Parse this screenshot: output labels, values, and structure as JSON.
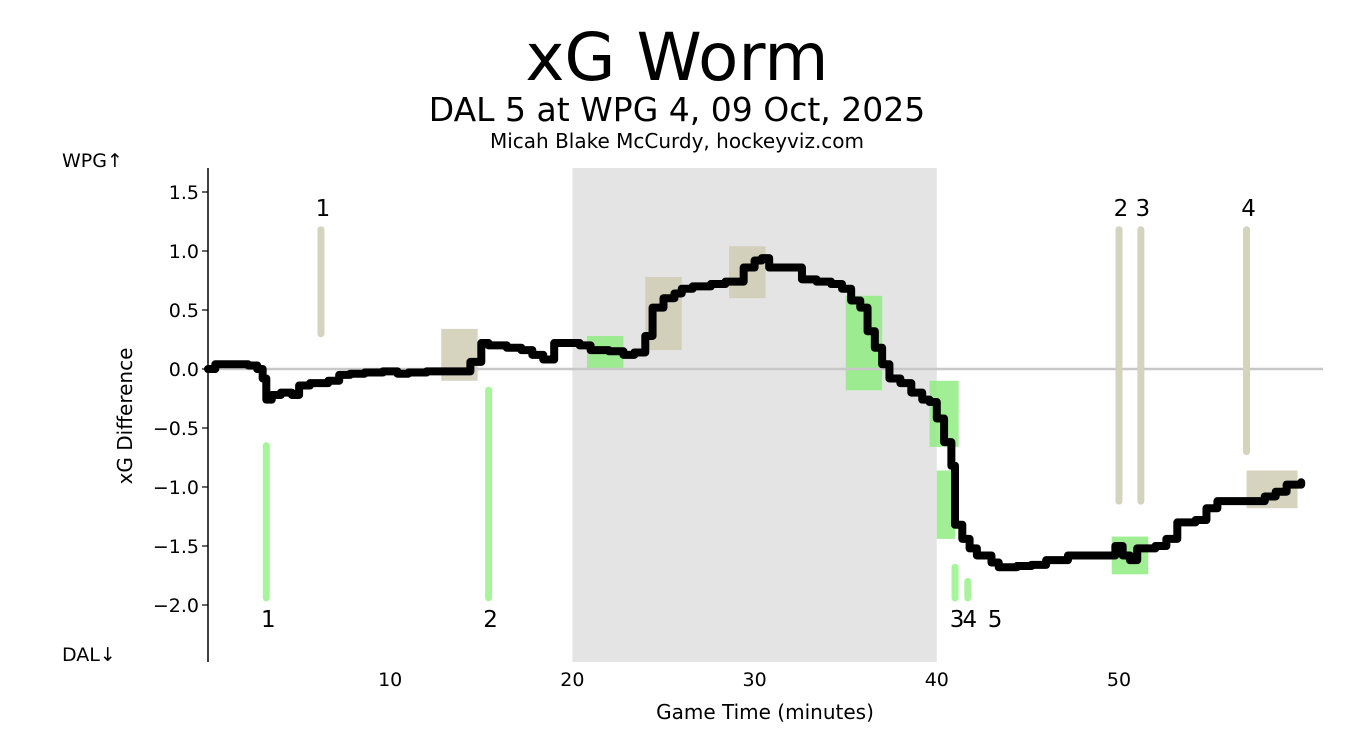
{
  "chart_data": {
    "type": "line",
    "title": "xG Worm",
    "subtitle": "DAL 5 at WPG 4, 09 Oct, 2025",
    "byline": "Micah Blake McCurdy, hockeyviz.com",
    "xlabel": "Game Time (minutes)",
    "ylabel": "xG Difference",
    "xlim": [
      0,
      61
    ],
    "ylim": [
      -2.5,
      1.7
    ],
    "x_ticks": [
      10,
      20,
      30,
      40,
      50
    ],
    "y_ticks": [
      1.5,
      1.0,
      0.5,
      0.0,
      -0.5,
      -1.0,
      -1.5,
      -2.0
    ],
    "y_tick_labels": [
      "1.5",
      "1.0",
      "0.5",
      "0.0",
      "−0.5",
      "−1.0",
      "−1.5",
      "−2.0"
    ],
    "team_top_label": "WPG↑",
    "team_bottom_label": "DAL↓",
    "grid": false,
    "shaded_period": [
      20,
      40
    ],
    "colors": {
      "worm": "#000000",
      "period_shade": "#e4e4e4",
      "zero_line": "#c8c8c8",
      "home": "#d4d3bd",
      "away": "#a6f59b",
      "away_box": "#90ec83",
      "home_box": "#cfcdb4"
    },
    "series": [
      {
        "points": [
          [
            0,
            0.0
          ],
          [
            0.4,
            0.04
          ],
          [
            2.2,
            0.03
          ],
          [
            2.7,
            0.0
          ],
          [
            3.0,
            -0.08
          ],
          [
            3.2,
            -0.26
          ],
          [
            3.5,
            -0.22
          ],
          [
            4.0,
            -0.2
          ],
          [
            4.6,
            -0.22
          ],
          [
            5.0,
            -0.14
          ],
          [
            5.6,
            -0.12
          ],
          [
            6.6,
            -0.1
          ],
          [
            7.2,
            -0.05
          ],
          [
            7.8,
            -0.04
          ],
          [
            8.6,
            -0.03
          ],
          [
            9.6,
            -0.02
          ],
          [
            10.4,
            -0.04
          ],
          [
            11.0,
            -0.03
          ],
          [
            12.0,
            -0.02
          ],
          [
            13.5,
            -0.02
          ],
          [
            14.4,
            0.06
          ],
          [
            15.0,
            0.22
          ],
          [
            15.4,
            0.2
          ],
          [
            16.4,
            0.18
          ],
          [
            17.2,
            0.16
          ],
          [
            17.8,
            0.12
          ],
          [
            18.4,
            0.08
          ],
          [
            19.0,
            0.22
          ],
          [
            20.4,
            0.2
          ],
          [
            21.0,
            0.16
          ],
          [
            22.0,
            0.15
          ],
          [
            22.8,
            0.12
          ],
          [
            23.4,
            0.14
          ],
          [
            24.0,
            0.28
          ],
          [
            24.4,
            0.52
          ],
          [
            25.0,
            0.6
          ],
          [
            25.6,
            0.64
          ],
          [
            26.0,
            0.68
          ],
          [
            26.6,
            0.7
          ],
          [
            27.6,
            0.72
          ],
          [
            28.4,
            0.74
          ],
          [
            29.4,
            0.86
          ],
          [
            30.0,
            0.92
          ],
          [
            30.4,
            0.94
          ],
          [
            30.8,
            0.86
          ],
          [
            32.0,
            0.86
          ],
          [
            32.6,
            0.76
          ],
          [
            33.4,
            0.74
          ],
          [
            34.2,
            0.72
          ],
          [
            34.8,
            0.68
          ],
          [
            35.3,
            0.58
          ],
          [
            35.8,
            0.52
          ],
          [
            36.2,
            0.32
          ],
          [
            36.6,
            0.18
          ],
          [
            37.0,
            0.04
          ],
          [
            37.4,
            -0.08
          ],
          [
            38.0,
            -0.12
          ],
          [
            38.6,
            -0.2
          ],
          [
            39.2,
            -0.26
          ],
          [
            39.6,
            -0.28
          ],
          [
            40.0,
            -0.42
          ],
          [
            40.4,
            -0.62
          ],
          [
            40.8,
            -0.82
          ],
          [
            41.0,
            -1.32
          ],
          [
            41.4,
            -1.44
          ],
          [
            41.8,
            -1.52
          ],
          [
            42.2,
            -1.58
          ],
          [
            42.6,
            -1.58
          ],
          [
            43.0,
            -1.64
          ],
          [
            43.4,
            -1.68
          ],
          [
            44.4,
            -1.67
          ],
          [
            45.2,
            -1.66
          ],
          [
            46.0,
            -1.62
          ],
          [
            47.2,
            -1.58
          ],
          [
            49.4,
            -1.58
          ],
          [
            49.8,
            -1.5
          ],
          [
            50.2,
            -1.58
          ],
          [
            50.6,
            -1.62
          ],
          [
            51.0,
            -1.52
          ],
          [
            52.0,
            -1.5
          ],
          [
            52.6,
            -1.44
          ],
          [
            53.2,
            -1.3
          ],
          [
            54.2,
            -1.28
          ],
          [
            54.8,
            -1.18
          ],
          [
            55.4,
            -1.12
          ],
          [
            57.0,
            -1.12
          ],
          [
            58.0,
            -1.08
          ],
          [
            58.6,
            -1.04
          ],
          [
            59.2,
            -0.98
          ],
          [
            60.0,
            -0.96
          ]
        ]
      }
    ],
    "goals": [
      {
        "team": "WPG",
        "number": "1",
        "x": 6.2,
        "y_from": 0.3,
        "y_to": 1.18
      },
      {
        "team": "WPG",
        "number": "2",
        "x": 50.0,
        "y_from": -1.12,
        "y_to": 1.18
      },
      {
        "team": "WPG",
        "number": "3",
        "x": 51.2,
        "y_from": -1.12,
        "y_to": 1.18
      },
      {
        "team": "WPG",
        "number": "4",
        "x": 57.0,
        "y_from": -0.7,
        "y_to": 1.18
      },
      {
        "team": "DAL",
        "number": "1",
        "x": 3.2,
        "y_from": -0.65,
        "y_to": -1.94
      },
      {
        "team": "DAL",
        "number": "2",
        "x": 15.4,
        "y_from": -0.18,
        "y_to": -1.94
      },
      {
        "team": "DAL",
        "number": "3",
        "x": 41.0,
        "y_from": -1.68,
        "y_to": -1.94
      },
      {
        "team": "DAL",
        "number": "4",
        "x": 41.7,
        "y_from": -1.8,
        "y_to": -1.94
      },
      {
        "team": "DAL",
        "number": "5",
        "x": 43.2,
        "y_from": -1.94,
        "y_to": -1.94
      }
    ],
    "penalty_boxes": [
      {
        "team": "home",
        "x0": 12.8,
        "x1": 14.8,
        "y0": -0.1,
        "y1": 0.34
      },
      {
        "team": "home",
        "x0": 24.0,
        "x1": 26.0,
        "y0": 0.16,
        "y1": 0.78
      },
      {
        "team": "home",
        "x0": 28.6,
        "x1": 30.6,
        "y0": 0.6,
        "y1": 1.04
      },
      {
        "team": "home",
        "x0": 57.0,
        "x1": 59.8,
        "y0": -1.18,
        "y1": -0.86
      },
      {
        "team": "away",
        "x0": 20.8,
        "x1": 22.8,
        "y0": 0.0,
        "y1": 0.28
      },
      {
        "team": "away",
        "x0": 35.0,
        "x1": 37.0,
        "y0": -0.18,
        "y1": 0.62
      },
      {
        "team": "away",
        "x0": 39.6,
        "x1": 41.2,
        "y0": -0.66,
        "y1": -0.1
      },
      {
        "team": "away",
        "x0": 40.0,
        "x1": 41.0,
        "y0": -1.44,
        "y1": -0.86
      },
      {
        "team": "away",
        "x0": 49.6,
        "x1": 51.6,
        "y0": -1.74,
        "y1": -1.42
      }
    ]
  }
}
